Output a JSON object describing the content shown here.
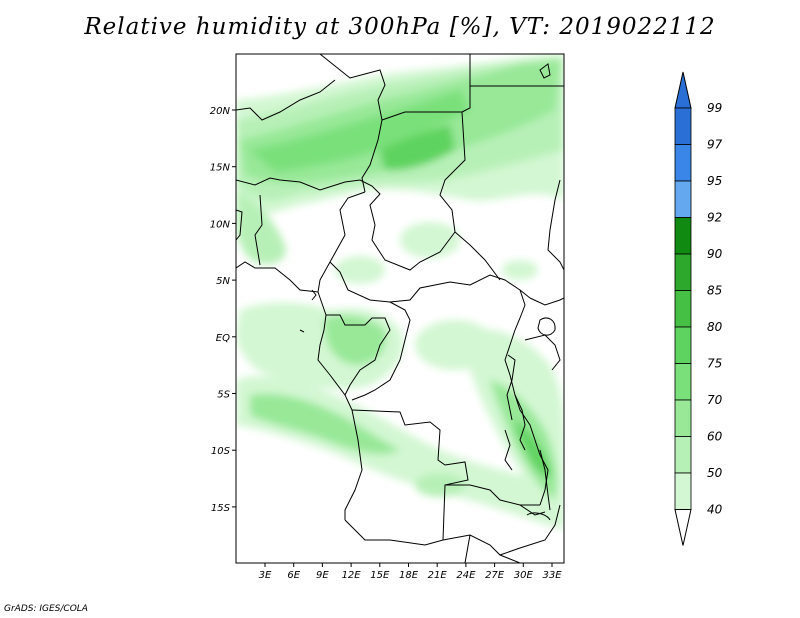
{
  "title": "Relative humidity at 300hPa [%], VT: 2019022112",
  "credit": "GrADS: IGES/COLA",
  "map": {
    "lat_labels": [
      "20N",
      "15N",
      "10N",
      "5N",
      "EQ",
      "5S",
      "10S",
      "15S"
    ],
    "lon_labels": [
      "3E",
      "6E",
      "9E",
      "12E",
      "15E",
      "18E",
      "21E",
      "24E",
      "27E",
      "30E",
      "33E"
    ]
  },
  "colorbar": {
    "levels": [
      "99",
      "97",
      "95",
      "92",
      "90",
      "85",
      "80",
      "75",
      "70",
      "60",
      "50",
      "40"
    ],
    "colors": [
      "#2a6fd6",
      "#3a86e8",
      "#64a9f0",
      "#118a11",
      "#2da82d",
      "#45c045",
      "#5fd35f",
      "#7ae07a",
      "#98e898",
      "#b7f0b7",
      "#d3f7d3",
      "#eefcee"
    ]
  }
}
